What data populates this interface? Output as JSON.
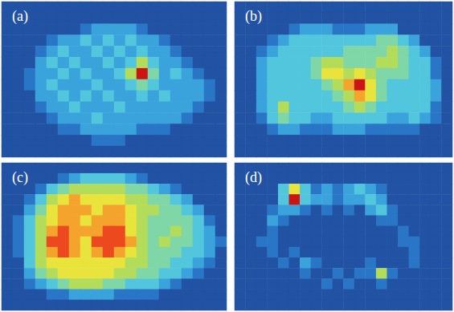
{
  "chart_data": [
    {
      "type": "heatmap",
      "title": "(a)",
      "tick_labels": false,
      "value_range": [
        0,
        9
      ],
      "cells": [
        [
          0,
          0,
          0,
          0,
          0,
          0,
          0,
          0,
          0,
          0,
          0,
          0,
          0,
          0,
          0,
          0,
          0,
          0,
          0,
          0
        ],
        [
          0,
          0,
          0,
          0,
          0,
          0,
          0,
          0,
          0,
          0,
          0,
          0,
          0,
          0,
          0,
          0,
          0,
          0,
          0,
          0
        ],
        [
          0,
          0,
          0,
          0,
          0,
          0,
          0,
          1,
          2,
          2,
          2,
          2,
          1,
          0,
          0,
          0,
          0,
          0,
          0,
          0
        ],
        [
          0,
          0,
          0,
          0,
          1,
          2,
          2,
          3,
          2,
          3,
          2,
          3,
          2,
          2,
          1,
          0,
          0,
          0,
          0,
          0
        ],
        [
          0,
          0,
          0,
          1,
          2,
          3,
          2,
          2,
          3,
          2,
          3,
          2,
          3,
          2,
          2,
          1,
          0,
          0,
          0,
          0
        ],
        [
          0,
          0,
          0,
          2,
          3,
          2,
          3,
          2,
          2,
          3,
          2,
          3,
          5,
          3,
          2,
          2,
          1,
          0,
          0,
          0
        ],
        [
          0,
          0,
          1,
          2,
          2,
          3,
          2,
          3,
          2,
          2,
          3,
          5,
          9,
          4,
          2,
          3,
          2,
          1,
          0,
          0
        ],
        [
          0,
          0,
          1,
          2,
          3,
          2,
          2,
          2,
          3,
          2,
          2,
          3,
          4,
          3,
          2,
          2,
          2,
          2,
          1,
          0
        ],
        [
          0,
          0,
          0,
          2,
          2,
          3,
          2,
          3,
          2,
          3,
          2,
          2,
          3,
          2,
          3,
          2,
          2,
          2,
          1,
          0
        ],
        [
          0,
          0,
          0,
          1,
          2,
          2,
          3,
          2,
          2,
          2,
          3,
          2,
          2,
          2,
          2,
          2,
          2,
          1,
          0,
          0
        ],
        [
          0,
          0,
          0,
          0,
          1,
          2,
          2,
          2,
          3,
          2,
          2,
          2,
          2,
          2,
          2,
          2,
          1,
          0,
          0,
          0
        ],
        [
          0,
          0,
          0,
          0,
          0,
          1,
          1,
          2,
          2,
          2,
          2,
          2,
          1,
          1,
          1,
          0,
          0,
          0,
          0,
          0
        ],
        [
          0,
          0,
          0,
          0,
          0,
          0,
          0,
          0,
          1,
          1,
          1,
          0,
          0,
          0,
          0,
          0,
          0,
          0,
          0,
          0
        ],
        [
          0,
          0,
          0,
          0,
          0,
          0,
          0,
          0,
          0,
          0,
          0,
          0,
          0,
          0,
          0,
          0,
          0,
          0,
          0,
          0
        ]
      ]
    },
    {
      "type": "heatmap",
      "title": "(b)",
      "tick_labels": false,
      "value_range": [
        0,
        9
      ],
      "cells": [
        [
          0,
          0,
          0,
          0,
          0,
          0,
          0,
          0,
          0,
          0,
          0,
          0,
          0,
          0,
          0,
          0,
          0,
          0,
          0,
          0
        ],
        [
          0,
          0,
          0,
          0,
          0,
          0,
          0,
          0,
          0,
          0,
          0,
          0,
          0,
          0,
          0,
          0,
          0,
          0,
          0,
          0
        ],
        [
          0,
          0,
          0,
          0,
          0,
          1,
          2,
          2,
          2,
          1,
          1,
          1,
          2,
          2,
          2,
          0,
          0,
          0,
          0,
          0
        ],
        [
          0,
          0,
          0,
          1,
          2,
          3,
          3,
          3,
          3,
          3,
          3,
          3,
          3,
          4,
          4,
          3,
          2,
          0,
          0,
          0
        ],
        [
          0,
          0,
          1,
          2,
          3,
          3,
          3,
          3,
          3,
          3,
          4,
          4,
          4,
          4,
          5,
          4,
          3,
          2,
          0,
          0
        ],
        [
          0,
          0,
          2,
          3,
          3,
          3,
          3,
          4,
          5,
          5,
          4,
          4,
          4,
          5,
          5,
          4,
          3,
          3,
          1,
          0
        ],
        [
          0,
          0,
          2,
          3,
          3,
          3,
          3,
          4,
          6,
          6,
          5,
          6,
          5,
          4,
          4,
          4,
          3,
          3,
          1,
          0
        ],
        [
          0,
          0,
          2,
          3,
          3,
          3,
          3,
          3,
          4,
          5,
          7,
          9,
          6,
          4,
          3,
          3,
          3,
          3,
          2,
          0
        ],
        [
          0,
          0,
          2,
          3,
          3,
          3,
          3,
          3,
          3,
          4,
          5,
          7,
          6,
          4,
          3,
          3,
          3,
          3,
          2,
          0
        ],
        [
          0,
          0,
          2,
          3,
          5,
          3,
          3,
          3,
          3,
          3,
          4,
          5,
          4,
          3,
          3,
          3,
          3,
          3,
          1,
          0
        ],
        [
          0,
          0,
          1,
          3,
          4,
          3,
          3,
          2,
          2,
          3,
          3,
          3,
          3,
          3,
          2,
          2,
          3,
          2,
          1,
          0
        ],
        [
          0,
          0,
          0,
          1,
          2,
          2,
          1,
          1,
          1,
          2,
          2,
          2,
          1,
          1,
          1,
          1,
          1,
          0,
          0,
          0
        ],
        [
          0,
          0,
          0,
          0,
          0,
          0,
          0,
          0,
          0,
          0,
          0,
          0,
          0,
          0,
          0,
          0,
          0,
          0,
          0,
          0
        ],
        [
          0,
          0,
          0,
          0,
          0,
          0,
          0,
          0,
          0,
          0,
          0,
          0,
          0,
          0,
          0,
          0,
          0,
          0,
          0,
          0
        ]
      ]
    },
    {
      "type": "heatmap",
      "title": "(c)",
      "tick_labels": false,
      "value_range": [
        0,
        9
      ],
      "cells": [
        [
          0,
          0,
          0,
          0,
          0,
          0,
          0,
          0,
          0,
          0,
          0,
          0,
          0,
          0,
          0,
          0,
          0,
          0,
          0,
          0
        ],
        [
          0,
          0,
          0,
          0,
          0,
          1,
          2,
          3,
          3,
          3,
          3,
          2,
          1,
          0,
          0,
          0,
          0,
          0,
          0,
          0
        ],
        [
          0,
          0,
          0,
          1,
          3,
          4,
          5,
          5,
          5,
          5,
          5,
          4,
          4,
          3,
          2,
          1,
          0,
          0,
          0,
          0
        ],
        [
          0,
          0,
          1,
          3,
          5,
          6,
          7,
          6,
          6,
          6,
          6,
          5,
          5,
          4,
          4,
          3,
          2,
          0,
          0,
          0
        ],
        [
          0,
          0,
          2,
          4,
          6,
          7,
          7,
          7,
          6,
          7,
          7,
          6,
          5,
          5,
          4,
          4,
          3,
          2,
          0,
          0
        ],
        [
          0,
          1,
          3,
          5,
          6,
          7,
          7,
          6,
          7,
          7,
          7,
          6,
          5,
          4,
          4,
          4,
          4,
          3,
          1,
          0
        ],
        [
          0,
          1,
          3,
          5,
          7,
          8,
          7,
          7,
          7,
          8,
          8,
          6,
          5,
          4,
          4,
          5,
          4,
          3,
          2,
          0
        ],
        [
          0,
          1,
          3,
          5,
          8,
          8,
          7,
          6,
          8,
          8,
          8,
          7,
          5,
          4,
          5,
          4,
          4,
          3,
          2,
          1
        ],
        [
          0,
          1,
          3,
          5,
          7,
          8,
          7,
          6,
          7,
          8,
          7,
          6,
          5,
          4,
          4,
          4,
          3,
          3,
          2,
          0
        ],
        [
          0,
          0,
          3,
          5,
          6,
          6,
          6,
          6,
          6,
          6,
          6,
          5,
          5,
          4,
          4,
          3,
          3,
          2,
          1,
          0
        ],
        [
          0,
          0,
          2,
          4,
          5,
          6,
          6,
          6,
          6,
          6,
          5,
          5,
          4,
          4,
          3,
          3,
          2,
          1,
          0,
          0
        ],
        [
          0,
          0,
          1,
          2,
          3,
          4,
          5,
          5,
          5,
          4,
          4,
          3,
          3,
          3,
          2,
          1,
          0,
          0,
          0,
          0
        ],
        [
          0,
          0,
          0,
          0,
          1,
          1,
          2,
          2,
          2,
          2,
          1,
          1,
          1,
          1,
          0,
          0,
          0,
          0,
          0,
          0
        ],
        [
          0,
          0,
          0,
          0,
          0,
          0,
          0,
          0,
          0,
          0,
          0,
          0,
          0,
          0,
          0,
          0,
          0,
          0,
          0,
          0
        ]
      ]
    },
    {
      "type": "heatmap",
      "title": "(d)",
      "tick_labels": false,
      "value_range": [
        0,
        9
      ],
      "cells": [
        [
          0,
          0,
          0,
          0,
          0,
          0,
          0,
          0,
          0,
          0,
          0,
          0,
          0,
          0,
          0,
          0,
          0,
          0,
          0,
          0
        ],
        [
          0,
          0,
          0,
          0,
          0,
          0,
          0,
          0,
          0,
          0,
          0,
          0,
          0,
          0,
          0,
          0,
          0,
          0,
          0,
          0
        ],
        [
          0,
          0,
          0,
          0,
          3,
          6,
          3,
          1,
          2,
          1,
          2,
          3,
          2,
          1,
          0,
          0,
          0,
          0,
          0,
          0
        ],
        [
          0,
          0,
          0,
          0,
          3,
          9,
          3,
          2,
          2,
          1,
          2,
          2,
          3,
          2,
          0,
          0,
          0,
          0,
          0,
          0
        ],
        [
          0,
          0,
          0,
          1,
          2,
          2,
          1,
          0,
          1,
          0,
          1,
          0,
          2,
          3,
          1,
          0,
          0,
          0,
          0,
          0
        ],
        [
          0,
          0,
          0,
          2,
          1,
          0,
          0,
          0,
          0,
          0,
          0,
          0,
          0,
          1,
          1,
          0,
          0,
          0,
          0,
          0
        ],
        [
          0,
          0,
          0,
          1,
          0,
          0,
          0,
          0,
          0,
          0,
          0,
          0,
          0,
          0,
          0,
          1,
          0,
          0,
          0,
          0
        ],
        [
          0,
          0,
          1,
          1,
          0,
          0,
          0,
          0,
          0,
          0,
          0,
          0,
          0,
          0,
          0,
          1,
          1,
          0,
          0,
          0
        ],
        [
          0,
          0,
          0,
          1,
          0,
          1,
          0,
          0,
          0,
          0,
          0,
          0,
          0,
          0,
          0,
          0,
          1,
          0,
          0,
          0
        ],
        [
          0,
          0,
          0,
          0,
          1,
          0,
          2,
          1,
          0,
          0,
          0,
          0,
          1,
          0,
          0,
          0,
          1,
          0,
          0,
          0
        ],
        [
          0,
          0,
          0,
          0,
          0,
          0,
          1,
          0,
          0,
          1,
          0,
          1,
          1,
          5,
          1,
          0,
          0,
          0,
          0,
          0
        ],
        [
          0,
          0,
          0,
          0,
          0,
          0,
          0,
          0,
          1,
          0,
          1,
          0,
          0,
          1,
          0,
          0,
          0,
          0,
          0,
          0
        ],
        [
          0,
          0,
          0,
          0,
          0,
          0,
          0,
          0,
          0,
          0,
          0,
          0,
          0,
          0,
          0,
          0,
          0,
          0,
          0,
          0
        ],
        [
          0,
          0,
          0,
          0,
          0,
          0,
          0,
          0,
          0,
          0,
          0,
          0,
          0,
          0,
          0,
          0,
          0,
          0,
          0,
          0
        ]
      ]
    }
  ]
}
